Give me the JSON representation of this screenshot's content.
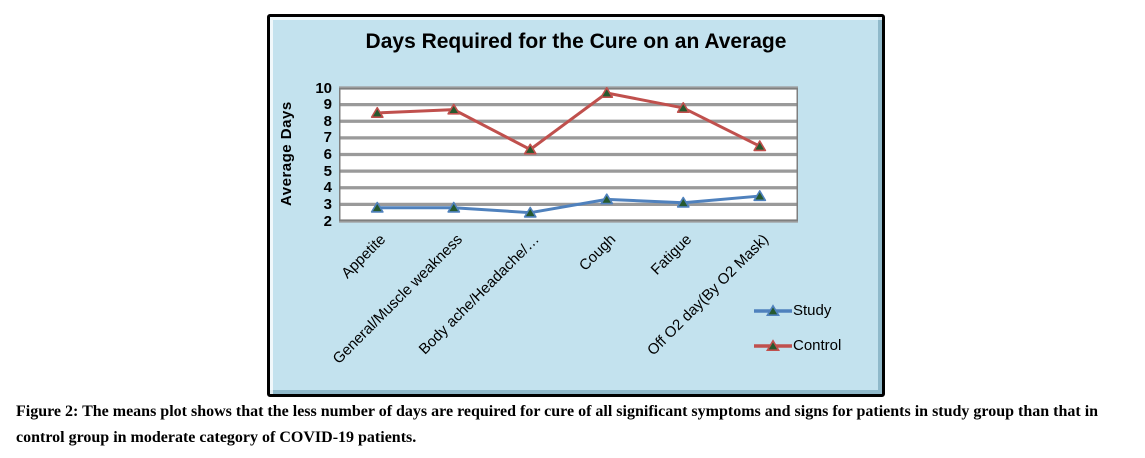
{
  "figure": {
    "caption": "Figure 2: The means plot shows that the less number of days are required for cure of all significant symptoms and signs for patients in study group than that in control group in moderate category of COVID-19 patients."
  },
  "chart_data": {
    "type": "line",
    "title": "Days Required for the Cure on an Average",
    "xlabel": "",
    "ylabel": "Average Days",
    "categories": [
      "Appetite",
      "General/Muscle weakness",
      "Body ache/Headache/…",
      "Cough",
      "Fatigue",
      "Off O2 day(By O2 Mask)"
    ],
    "series": [
      {
        "name": "Study",
        "color": "#4f81bd",
        "values": [
          2.8,
          2.8,
          2.5,
          3.3,
          3.1,
          3.5
        ]
      },
      {
        "name": "Control",
        "color": "#c0504d",
        "values": [
          8.5,
          8.7,
          6.3,
          9.7,
          8.8,
          6.5
        ]
      }
    ],
    "ylim": [
      2,
      10
    ],
    "yticks": [
      2,
      3,
      4,
      5,
      6,
      7,
      8,
      9,
      10
    ],
    "marker": "triangle",
    "marker_fill": "#26592e",
    "grid": true,
    "legend_position": "right-bottom",
    "colors": {
      "frame_bg": "#c3e2ee",
      "plot_bg": "#ffffff",
      "gridline": "#9a9a9a",
      "plot_border": "#7f7f7f",
      "frame_border": "#000000"
    }
  }
}
